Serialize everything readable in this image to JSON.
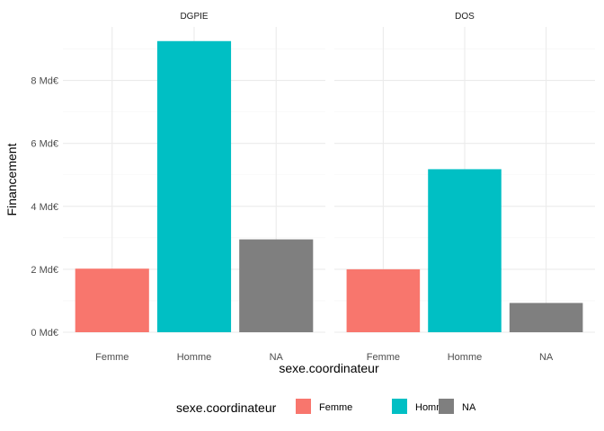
{
  "chart_data": {
    "type": "bar",
    "facet_variable": "",
    "facets": [
      {
        "label": "DGPIE",
        "categories": [
          "Femme",
          "Homme",
          "NA"
        ],
        "values": [
          2.02,
          9.25,
          2.95
        ]
      },
      {
        "label": "DOS",
        "categories": [
          "Femme",
          "Homme",
          "NA"
        ],
        "values": [
          2.0,
          5.18,
          0.93
        ]
      }
    ],
    "title": "",
    "xlabel": "sexe.coordinateur",
    "ylabel": "Financement",
    "ylim": [
      0,
      9.7
    ],
    "y_ticks": [
      0,
      2,
      4,
      6,
      8
    ],
    "y_tick_labels": [
      "0 Md€",
      "2 Md€",
      "4 Md€",
      "6 Md€",
      "8 Md€"
    ],
    "grid": true,
    "legend": {
      "title": "sexe.coordinateur",
      "position": "bottom",
      "entries": [
        {
          "label": "Femme",
          "color": "#F8766D"
        },
        {
          "label": "Homme",
          "color": "#00BFC4"
        },
        {
          "label": "NA",
          "color": "#7F7F7F"
        }
      ]
    }
  }
}
